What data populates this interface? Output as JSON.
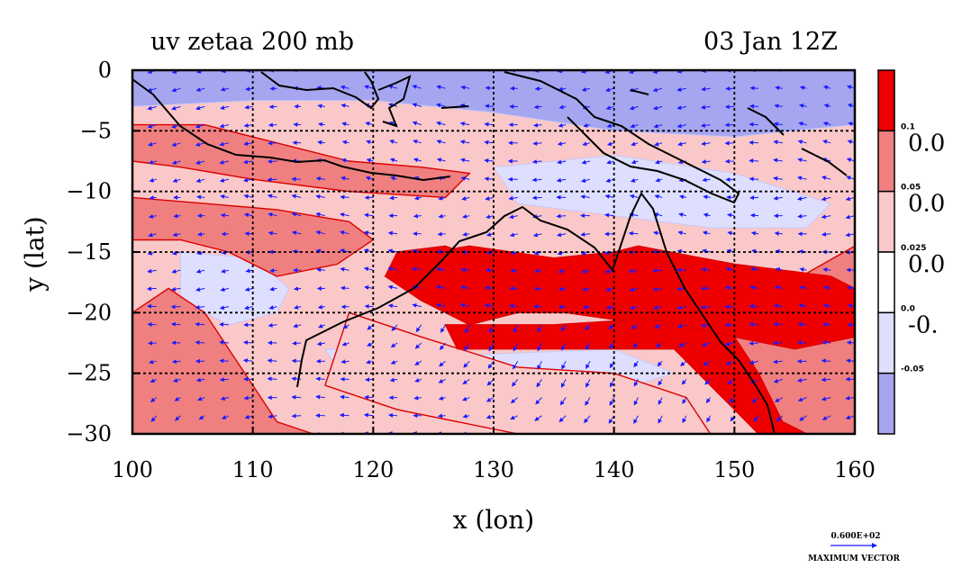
{
  "plot": {
    "title_left": "uv zetaa 200 mb",
    "title_right": "03 Jan 12Z"
  },
  "chart_data": {
    "type": "heatmap",
    "variable_label": "uv zetaa 200 mb",
    "time_label": "03 Jan 12Z",
    "xlabel": "x (lon)",
    "ylabel": "y (lat)",
    "xlim": [
      100,
      160
    ],
    "ylim": [
      -30,
      0
    ],
    "x_ticks": [
      100,
      110,
      120,
      130,
      140,
      150,
      160
    ],
    "y_ticks": [
      0,
      -5,
      -10,
      -15,
      -20,
      -25,
      -30
    ],
    "grid": true,
    "overlay": "wind vectors",
    "max_vector_value": "0.600E+02",
    "max_vector_label": "MAXIMUM VECTOR",
    "colorbar": {
      "boundaries": [
        "0.1",
        "0.05",
        "0.025",
        "0.0",
        "-0.05"
      ],
      "large_labels": [
        "0.0",
        "0.0",
        "0.0",
        "-0."
      ],
      "colors": [
        "#ee0000",
        "#f08080",
        "#fac8c8",
        "#ffffff",
        "#dedeff",
        "#a6a6f0"
      ]
    },
    "colors": {
      "strong_positive": "#ee0000",
      "medium_positive": "#f08080",
      "weak_positive": "#fac8c8",
      "near_zero": "#ffffff",
      "weak_negative": "#dedeff",
      "negative": "#a6a6f0",
      "contour_line": "#dd0000",
      "vector": "#1a1aff",
      "coast": "#000000"
    },
    "bands": [
      {
        "name": "south-east strong band",
        "level": 3,
        "points": [
          [
            142,
            -14.5
          ],
          [
            150,
            -16
          ],
          [
            158,
            -17
          ],
          [
            160,
            -18
          ],
          [
            160,
            -22
          ],
          [
            155,
            -23
          ],
          [
            150,
            -22
          ],
          [
            143,
            -21
          ],
          [
            136,
            -20
          ],
          [
            130,
            -20
          ],
          [
            125,
            -19
          ],
          [
            121,
            -17
          ],
          [
            122,
            -15.5
          ],
          [
            128,
            -14.5
          ],
          [
            135,
            -15.5
          ],
          [
            140,
            -15
          ]
        ]
      },
      {
        "name": "central strong band",
        "level": 3,
        "points": [
          [
            122,
            -15
          ],
          [
            126,
            -14.5
          ],
          [
            130,
            -16
          ],
          [
            133,
            -18
          ],
          [
            132,
            -20
          ],
          [
            128,
            -21
          ],
          [
            124,
            -19
          ],
          [
            121,
            -17
          ]
        ]
      },
      {
        "name": "lower strong band",
        "level": 3,
        "points": [
          [
            126,
            -21
          ],
          [
            135,
            -21
          ],
          [
            143,
            -20.5
          ],
          [
            150,
            -22
          ],
          [
            152,
            -25
          ],
          [
            154,
            -29
          ],
          [
            156,
            -30
          ],
          [
            152,
            -30
          ],
          [
            149,
            -27
          ],
          [
            145,
            -23
          ],
          [
            135,
            -23
          ],
          [
            127,
            -23
          ]
        ]
      },
      {
        "name": "north medium band",
        "level": 2,
        "points": [
          [
            100,
            -4.5
          ],
          [
            106,
            -4.5
          ],
          [
            112,
            -6
          ],
          [
            118,
            -7.5
          ],
          [
            124,
            -8
          ],
          [
            128,
            -8.5
          ],
          [
            126,
            -10.5
          ],
          [
            118,
            -10
          ],
          [
            110,
            -9
          ],
          [
            104,
            -8
          ],
          [
            100,
            -7.5
          ]
        ]
      },
      {
        "name": "west medium band",
        "level": 2,
        "points": [
          [
            100,
            -10.5
          ],
          [
            106,
            -11
          ],
          [
            112,
            -11.5
          ],
          [
            118,
            -12.5
          ],
          [
            120,
            -14
          ],
          [
            117,
            -16
          ],
          [
            112,
            -17
          ],
          [
            108,
            -15
          ],
          [
            104,
            -14
          ],
          [
            100,
            -14
          ]
        ]
      },
      {
        "name": "western lower medium band",
        "level": 2,
        "points": [
          [
            100,
            -20
          ],
          [
            103,
            -18
          ],
          [
            106,
            -20
          ],
          [
            108,
            -23
          ],
          [
            110,
            -26
          ],
          [
            112,
            -29
          ],
          [
            115,
            -30
          ],
          [
            100,
            -30
          ]
        ]
      },
      {
        "name": "eastern medium band",
        "level": 2,
        "points": [
          [
            146,
            -22
          ],
          [
            152,
            -19
          ],
          [
            160,
            -14.5
          ],
          [
            160,
            -30
          ],
          [
            152,
            -30
          ],
          [
            149,
            -26
          ]
        ]
      },
      {
        "name": "central weak band",
        "level": 1,
        "points": [
          [
            118,
            -20
          ],
          [
            124,
            -22
          ],
          [
            132,
            -24.5
          ],
          [
            140,
            -25
          ],
          [
            146,
            -27
          ],
          [
            148,
            -30
          ],
          [
            132,
            -30
          ],
          [
            122,
            -28
          ],
          [
            116,
            -26
          ]
        ]
      }
    ],
    "negative_regions": [
      {
        "name": "northern band",
        "level": -2,
        "points": [
          [
            100,
            0
          ],
          [
            160,
            0
          ],
          [
            160,
            -4.5
          ],
          [
            150,
            -5.5
          ],
          [
            140,
            -5
          ],
          [
            130,
            -3.5
          ],
          [
            120,
            -2.5
          ],
          [
            110,
            -2.5
          ],
          [
            100,
            -3
          ]
        ]
      },
      {
        "name": "north-east patch",
        "level": -1,
        "points": [
          [
            130,
            -8
          ],
          [
            140,
            -7
          ],
          [
            150,
            -8.5
          ],
          [
            158,
            -11
          ],
          [
            156,
            -13
          ],
          [
            148,
            -13
          ],
          [
            140,
            -12
          ],
          [
            132,
            -11
          ]
        ]
      },
      {
        "name": "south-west patch",
        "level": -1,
        "points": [
          [
            104,
            -15
          ],
          [
            110,
            -15.5
          ],
          [
            113,
            -18
          ],
          [
            112,
            -20
          ],
          [
            108,
            -21
          ],
          [
            104,
            -19
          ]
        ]
      },
      {
        "name": "southern trough",
        "level": -1,
        "points": [
          [
            116,
            -23
          ],
          [
            128,
            -23.5
          ],
          [
            140,
            -23
          ],
          [
            145,
            -25
          ],
          [
            140,
            -26.5
          ],
          [
            128,
            -27
          ],
          [
            118,
            -26
          ]
        ]
      }
    ]
  }
}
